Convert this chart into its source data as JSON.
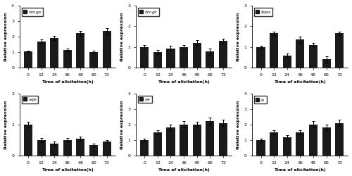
{
  "subplots": [
    {
      "label": "hmgs",
      "label_style": "italic",
      "x": [
        0,
        12,
        24,
        36,
        48,
        60,
        72
      ],
      "y": [
        1.05,
        1.7,
        1.9,
        1.15,
        2.2,
        1.0,
        2.35
      ],
      "yerr": [
        0.05,
        0.12,
        0.15,
        0.1,
        0.15,
        0.1,
        0.2
      ],
      "ylim": [
        0,
        4
      ]
    },
    {
      "label": "hmgr",
      "label_style": "italic",
      "x": [
        0,
        12,
        24,
        36,
        48,
        60,
        72
      ],
      "y": [
        1.0,
        0.75,
        0.93,
        1.0,
        1.2,
        0.78,
        1.28
      ],
      "yerr": [
        0.08,
        0.1,
        0.12,
        0.08,
        0.12,
        0.15,
        0.12
      ],
      "ylim": [
        0,
        3
      ]
    },
    {
      "label": "fpps",
      "label_style": "italic",
      "x": [
        0,
        12,
        24,
        36,
        48,
        60,
        72
      ],
      "y": [
        1.0,
        1.65,
        0.6,
        1.35,
        1.1,
        0.4,
        1.65
      ],
      "yerr": [
        0.07,
        0.1,
        0.08,
        0.15,
        0.08,
        0.15,
        0.1
      ],
      "ylim": [
        0,
        3
      ]
    },
    {
      "label": "sqe",
      "label_style": "italic",
      "x": [
        0,
        12,
        24,
        36,
        48,
        60,
        72
      ],
      "y": [
        1.0,
        0.5,
        0.4,
        0.5,
        0.55,
        0.35,
        0.45
      ],
      "yerr": [
        0.08,
        0.06,
        0.05,
        0.07,
        0.06,
        0.05,
        0.06
      ],
      "ylim": [
        0,
        2
      ]
    },
    {
      "label": "se",
      "label_style": "italic",
      "x": [
        0,
        12,
        24,
        36,
        48,
        60,
        72
      ],
      "y": [
        1.0,
        1.5,
        1.8,
        2.0,
        2.0,
        2.2,
        2.1
      ],
      "yerr": [
        0.1,
        0.15,
        0.2,
        0.2,
        0.18,
        0.25,
        0.2
      ],
      "ylim": [
        0,
        4
      ]
    },
    {
      "label": "ls",
      "label_style": "italic",
      "x": [
        0,
        12,
        24,
        36,
        48,
        60,
        72
      ],
      "y": [
        1.0,
        1.5,
        1.2,
        1.5,
        2.0,
        1.8,
        2.1
      ],
      "yerr": [
        0.1,
        0.15,
        0.12,
        0.12,
        0.2,
        0.18,
        0.2
      ],
      "ylim": [
        0,
        4
      ]
    }
  ],
  "xlabel": "Time of elicitation(h)",
  "ylabel": "Relative expression",
  "bar_color": "#1a1a1a",
  "bar_width": 0.65,
  "tick_labels": [
    "0",
    "12",
    "24",
    "36",
    "48",
    "60",
    "72"
  ],
  "yticks_map": {
    "0": [
      0,
      1,
      2,
      3,
      4
    ],
    "1": [
      0,
      1,
      2,
      3
    ],
    "2": [
      0,
      1,
      2,
      3
    ],
    "3": [
      0,
      1,
      2
    ],
    "4": [
      0,
      1,
      2,
      3,
      4
    ],
    "5": [
      0,
      1,
      2,
      3,
      4
    ]
  }
}
